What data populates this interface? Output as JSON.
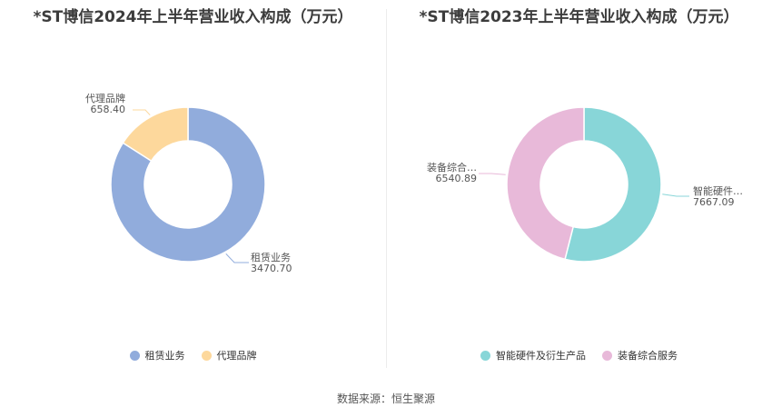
{
  "chart_data": [
    {
      "type": "pie",
      "title": "*ST博信2024年上半年营业收入构成（万元）",
      "donut": true,
      "slices": [
        {
          "label": "租赁业务",
          "short_label": "租赁业务",
          "value": 3470.7,
          "value_text": "3470.70",
          "color": "#91acdc"
        },
        {
          "label": "代理品牌",
          "short_label": "代理品牌",
          "value": 658.4,
          "value_text": "658.40",
          "color": "#fdd89c"
        }
      ],
      "legend_position": "bottom"
    },
    {
      "type": "pie",
      "title": "*ST博信2023年上半年营业收入构成（万元）",
      "donut": true,
      "slices": [
        {
          "label": "智能硬件及衍生产品",
          "short_label": "智能硬件…",
          "value": 7667.09,
          "value_text": "7667.09",
          "color": "#88d6d8"
        },
        {
          "label": "装备综合服务",
          "short_label": "装备综合…",
          "value": 6540.89,
          "value_text": "6540.89",
          "color": "#e8b9d9"
        }
      ],
      "legend_position": "bottom"
    }
  ],
  "source": "数据来源：恒生聚源"
}
